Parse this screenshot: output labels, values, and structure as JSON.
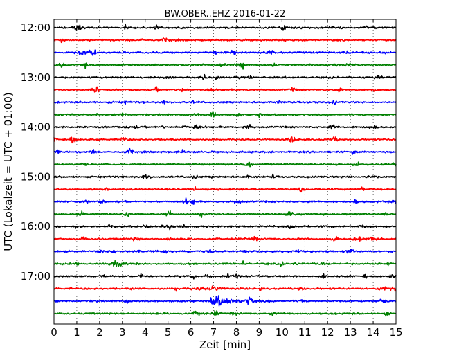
{
  "chart_data": {
    "type": "line",
    "title": "BW.OBER..EHZ 2016-01-22",
    "xlabel": "Zeit  [min]",
    "ylabel": "UTC (Lokalzeit = UTC + 01:00)",
    "xlim": [
      0,
      15
    ],
    "x_ticks": [
      "0",
      "1",
      "2",
      "3",
      "4",
      "5",
      "6",
      "7",
      "8",
      "9",
      "10",
      "11",
      "12",
      "13",
      "14",
      "15"
    ],
    "y_ticks": [
      "12:00",
      "13:00",
      "14:00",
      "15:00",
      "16:00",
      "17:00"
    ],
    "grid": "vertical dotted",
    "line_colors": [
      "#000000",
      "#ff0000",
      "#0000ff",
      "#008000"
    ],
    "trace_start_times": [
      "12:00",
      "12:15",
      "12:30",
      "12:45",
      "13:00",
      "13:15",
      "13:30",
      "13:45",
      "14:00",
      "14:15",
      "14:30",
      "14:45",
      "15:00",
      "15:15",
      "15:30",
      "15:45",
      "16:00",
      "16:15",
      "16:30",
      "16:45",
      "17:00",
      "17:15",
      "17:30",
      "17:45"
    ],
    "event": {
      "trace_start": "17:30",
      "onset_min": 7.0,
      "peak_min": 7.1
    }
  }
}
